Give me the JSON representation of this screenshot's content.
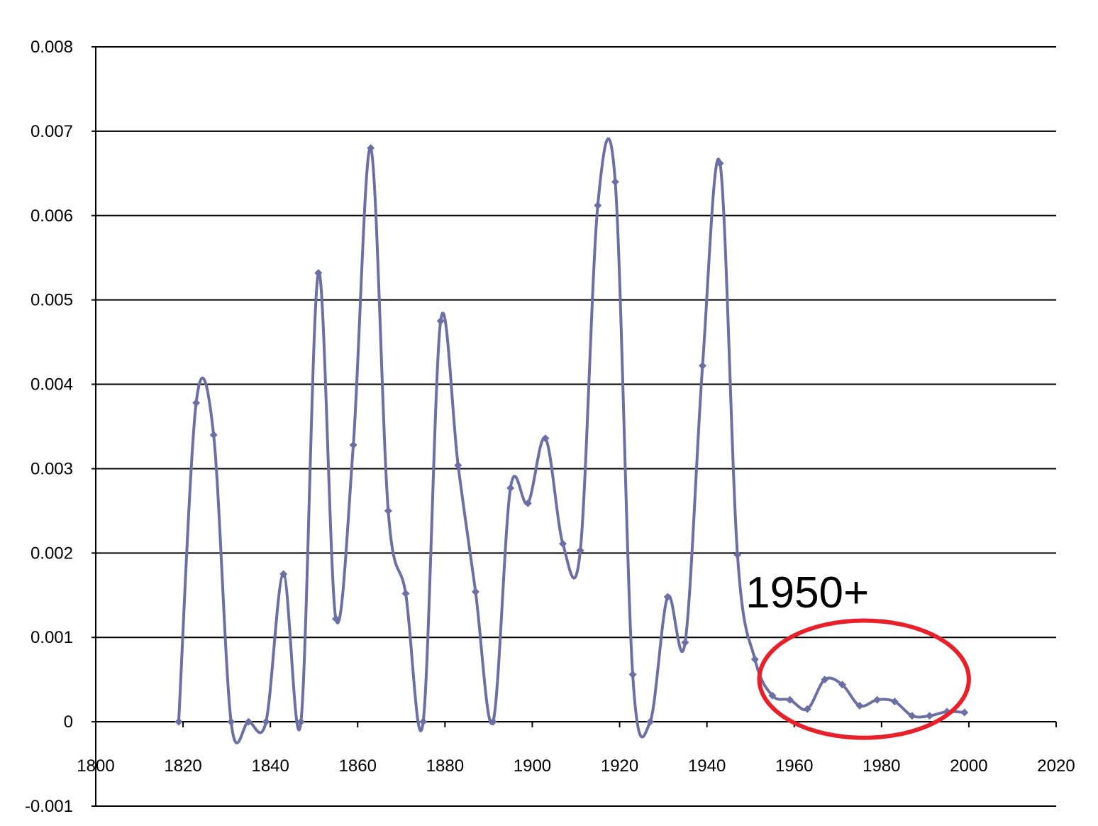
{
  "chart_data": {
    "type": "line",
    "title": "",
    "xlabel": "",
    "ylabel": "",
    "xlim": [
      1800,
      2020
    ],
    "ylim": [
      -0.001,
      0.008
    ],
    "x_ticks": [
      "1800",
      "1820",
      "1840",
      "1860",
      "1880",
      "1900",
      "1920",
      "1940",
      "1960",
      "1980",
      "2000",
      "2020"
    ],
    "y_ticks": [
      "-0.001",
      "0",
      "0.001",
      "0.002",
      "0.003",
      "0.004",
      "0.005",
      "0.006",
      "0.007",
      "0.008"
    ],
    "grid": "horizontal",
    "legend": "none",
    "smoothed": true,
    "series": [
      {
        "color": "#6b6fa3",
        "marker": "diamond",
        "x": [
          1819,
          1823,
          1827,
          1831,
          1835,
          1839,
          1843,
          1847,
          1851,
          1855,
          1859,
          1863,
          1867,
          1871,
          1875,
          1879,
          1883,
          1887,
          1891,
          1895,
          1899,
          1903,
          1907,
          1911,
          1915,
          1919,
          1923,
          1927,
          1931,
          1935,
          1939,
          1943,
          1947,
          1951,
          1955,
          1959,
          1963,
          1967,
          1971,
          1975,
          1979,
          1983,
          1987,
          1991,
          1995,
          1999
        ],
        "y": [
          0.0,
          0.00378,
          0.0034,
          0.0,
          0.0,
          0.0,
          0.00175,
          0.0,
          0.00532,
          0.00122,
          0.00328,
          0.0068,
          0.0025,
          0.00152,
          0.0,
          0.00475,
          0.00304,
          0.00154,
          0.0,
          0.00277,
          0.00259,
          0.00336,
          0.00211,
          0.00203,
          0.00612,
          0.0064,
          0.00056,
          0.0,
          0.00148,
          0.00094,
          0.00422,
          0.00662,
          0.00198,
          0.00074,
          0.00031,
          0.00026,
          0.00015,
          0.0005,
          0.00044,
          0.00019,
          0.00026,
          0.00024,
          7e-05,
          7e-05,
          0.00012,
          0.00011
        ]
      }
    ],
    "annotations": [
      {
        "text": "1950+",
        "x": 1963,
        "y": 0.00154,
        "shape": "ellipse",
        "ellipse_x": [
          1952,
          2000
        ],
        "ellipse_y": [
          -0.00019,
          0.0012
        ],
        "color": "#e8202a"
      }
    ]
  }
}
